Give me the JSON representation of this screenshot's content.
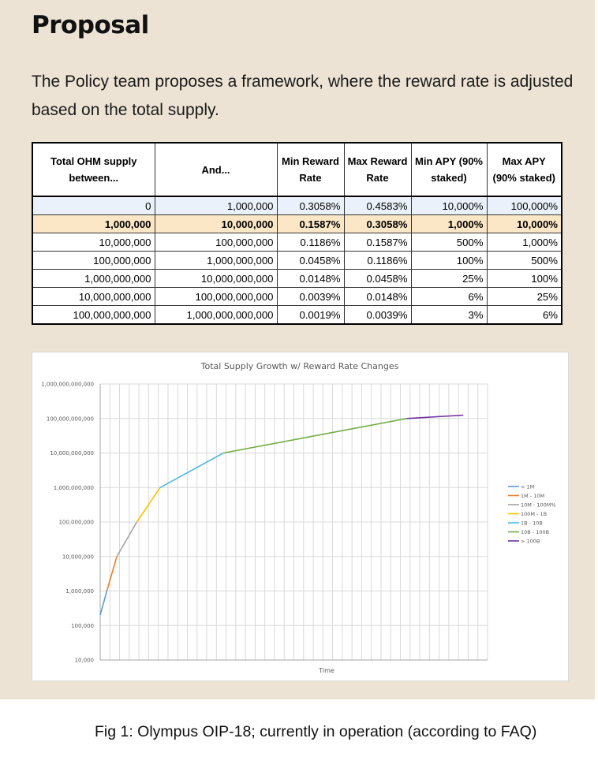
{
  "heading": "Proposal",
  "intro": "The Policy team proposes a framework, where the reward rate is adjusted based on the total supply.",
  "table": {
    "headers": [
      "Total OHM supply between...",
      "And...",
      "Min Reward Rate",
      "Max Reward Rate",
      "Min APY (90% staked)",
      "Max APY (90% staked)"
    ],
    "rows": [
      [
        "0",
        "1,000,000",
        "0.3058%",
        "0.4583%",
        "10,000%",
        "100,000%"
      ],
      [
        "1,000,000",
        "10,000,000",
        "0.1587%",
        "0.3058%",
        "1,000%",
        "10,000%"
      ],
      [
        "10,000,000",
        "100,000,000",
        "0.1186%",
        "0.1587%",
        "500%",
        "1,000%"
      ],
      [
        "100,000,000",
        "1,000,000,000",
        "0.0458%",
        "0.1186%",
        "100%",
        "500%"
      ],
      [
        "1,000,000,000",
        "10,000,000,000",
        "0.0148%",
        "0.0458%",
        "25%",
        "100%"
      ],
      [
        "10,000,000,000",
        "100,000,000,000",
        "0.0039%",
        "0.0148%",
        "6%",
        "25%"
      ],
      [
        "100,000,000,000",
        "1,000,000,000,000",
        "0.0019%",
        "0.0039%",
        "3%",
        "6%"
      ]
    ],
    "highlight_row": 1
  },
  "chart_data": {
    "type": "line",
    "title": "Total Supply Growth w/ Reward Rate Changes",
    "xlabel": "Time",
    "ylabel": "",
    "y_scale": "log",
    "ylim": [
      10000,
      1000000000000
    ],
    "y_ticks": [
      "1,000,000,000,000",
      "100,000,000,000",
      "10,000,000,000",
      "1,000,000,000",
      "100,000,000",
      "10,000,000",
      "1,000,000",
      "100,000",
      "10,000"
    ],
    "grid": true,
    "legend_position": "right",
    "x_range": [
      0,
      100
    ],
    "series": [
      {
        "name": "< 1M",
        "color": "#5b9bd5",
        "x": [
          0,
          2
        ],
        "y": [
          200000,
          1000000
        ]
      },
      {
        "name": "1M - 10M",
        "color": "#ed7d31",
        "x": [
          2,
          5
        ],
        "y": [
          1000000,
          10000000
        ]
      },
      {
        "name": "10M - 100M%",
        "color": "#a5a5a5",
        "x": [
          5,
          11
        ],
        "y": [
          10000000,
          100000000
        ]
      },
      {
        "name": "100M - 1B",
        "color": "#ffc000",
        "x": [
          11,
          18
        ],
        "y": [
          100000000,
          1000000000
        ]
      },
      {
        "name": "1B - 10B",
        "color": "#4fb8e8",
        "x": [
          18,
          37
        ],
        "y": [
          1000000000,
          10000000000
        ]
      },
      {
        "name": "10B - 100B",
        "color": "#70ad47",
        "x": [
          37,
          92
        ],
        "y": [
          10000000000,
          100000000000
        ]
      },
      {
        "name": "> 100B",
        "color": "#7030a0",
        "x": [
          92,
          109
        ],
        "y": [
          100000000000,
          125000000000
        ]
      }
    ]
  },
  "caption": "Fig 1: Olympus OIP-18; currently in operation (according to FAQ)"
}
